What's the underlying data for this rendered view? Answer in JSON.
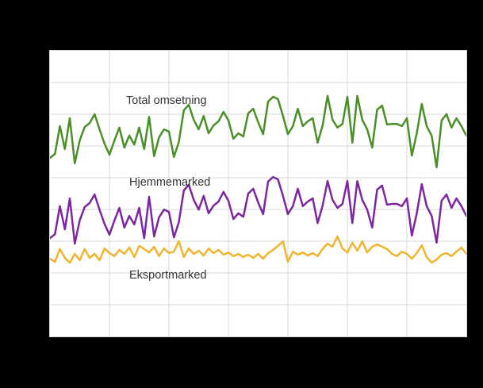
{
  "figure": {
    "background_color": "#000000",
    "plot_background_color": "#ffffff",
    "grid_color": "#d9d9d9",
    "border_color": "#d8d8d8",
    "label_text_color": "#333333",
    "note": "Axis tick labels and title are not visible in the image (black on black surround); only the plot area, gridlines, three line series and their inline labels are rendered."
  },
  "chart_data": {
    "type": "line",
    "title": "",
    "xlabel": "",
    "ylabel": "",
    "x_axis_labels_visible": false,
    "y_axis_labels_visible": false,
    "n_points": 85,
    "y_scale": "percent of plot height measured from plot bottom (no numeric axis visible)",
    "grid": {
      "vertical_divisions": 7,
      "horizontal_divisions": 9,
      "gridlines_on": true
    },
    "legend": "inline labels next to each line",
    "series": [
      {
        "name": "Total omsetning",
        "color": "#4a8f27",
        "values": [
          62.5,
          63.9,
          73.6,
          65.6,
          76.4,
          60.6,
          68.6,
          73.3,
          74.7,
          77.8,
          72.5,
          67.5,
          63.6,
          68.6,
          73.1,
          66.1,
          70.3,
          67.2,
          73.1,
          65.6,
          76.9,
          63.1,
          69.7,
          72.5,
          71.7,
          62.8,
          68.1,
          79.2,
          81.1,
          75.8,
          72.5,
          77.2,
          71.1,
          73.9,
          75.3,
          78.6,
          75.6,
          69.2,
          71.1,
          70.0,
          78.1,
          79.7,
          75.0,
          70.8,
          82.2,
          83.9,
          83.1,
          77.2,
          70.8,
          73.6,
          79.7,
          73.6,
          75.3,
          76.4,
          67.8,
          73.9,
          84.2,
          75.8,
          73.1,
          74.4,
          83.9,
          67.8,
          84.2,
          75.8,
          72.5,
          66.1,
          79.4,
          80.8,
          74.2,
          74.4,
          74.4,
          73.6,
          76.4,
          63.3,
          71.1,
          81.4,
          73.6,
          70.3,
          59.2,
          75.6,
          77.8,
          73.1,
          76.4,
          73.6,
          70.3
        ]
      },
      {
        "name": "Hjemmemarked",
        "color": "#7c26a0",
        "values": [
          34.4,
          35.8,
          45.6,
          37.5,
          48.3,
          32.5,
          40.6,
          45.3,
          46.7,
          49.7,
          44.4,
          39.4,
          35.6,
          40.6,
          45.0,
          38.1,
          42.2,
          39.2,
          45.0,
          34.4,
          48.9,
          35.0,
          41.7,
          44.4,
          43.6,
          34.7,
          40.0,
          51.1,
          53.1,
          47.8,
          44.4,
          49.2,
          43.1,
          45.8,
          47.2,
          50.6,
          47.5,
          41.1,
          43.1,
          41.9,
          50.0,
          51.7,
          46.9,
          42.8,
          54.2,
          55.8,
          55.0,
          49.2,
          42.8,
          45.6,
          51.7,
          45.6,
          47.2,
          48.3,
          39.7,
          45.8,
          54.4,
          47.8,
          45.0,
          46.4,
          54.4,
          39.7,
          54.4,
          47.8,
          44.4,
          38.1,
          51.4,
          52.8,
          46.1,
          46.4,
          46.4,
          45.6,
          48.3,
          35.3,
          43.1,
          53.3,
          45.6,
          42.2,
          32.8,
          47.5,
          49.7,
          45.0,
          48.3,
          45.6,
          42.2
        ]
      },
      {
        "name": "Eksportmarked",
        "color": "#f0b42e",
        "values": [
          27.2,
          26.1,
          30.6,
          27.5,
          25.8,
          28.9,
          26.7,
          30.6,
          27.5,
          28.9,
          26.7,
          30.8,
          29.2,
          28.1,
          30.3,
          28.9,
          31.1,
          27.8,
          31.7,
          30.6,
          29.4,
          31.4,
          28.1,
          30.8,
          29.2,
          29.7,
          33.3,
          27.8,
          30.8,
          28.9,
          30.0,
          28.3,
          30.8,
          29.2,
          30.3,
          28.6,
          29.4,
          28.1,
          28.9,
          27.8,
          28.6,
          27.5,
          28.9,
          27.2,
          29.2,
          30.3,
          31.7,
          33.3,
          26.1,
          29.7,
          28.6,
          29.4,
          28.3,
          29.2,
          28.1,
          30.6,
          32.5,
          31.4,
          35.0,
          30.8,
          29.4,
          32.8,
          30.0,
          33.3,
          29.4,
          31.4,
          32.2,
          31.4,
          30.6,
          28.9,
          28.1,
          29.7,
          28.9,
          27.2,
          29.2,
          31.9,
          27.8,
          25.8,
          26.9,
          28.6,
          29.2,
          28.1,
          29.7,
          31.1,
          28.9
        ]
      }
    ]
  }
}
